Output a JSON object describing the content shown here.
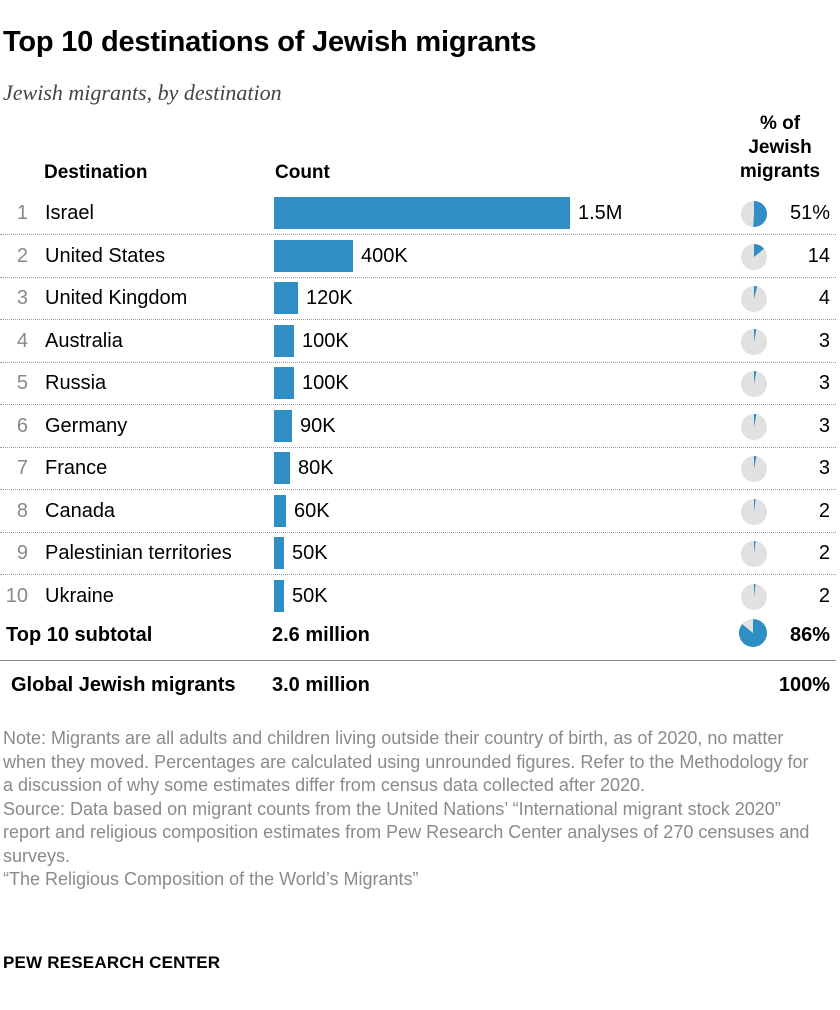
{
  "title": "Top 10 destinations of Jewish migrants",
  "subtitle": "Jewish migrants, by destination",
  "headers": {
    "destination": "Destination",
    "count": "Count",
    "pct_lines": [
      "% of",
      "Jewish",
      "migrants"
    ]
  },
  "chart_data": {
    "type": "bar",
    "categories": [
      "Israel",
      "United States",
      "United Kingdom",
      "Australia",
      "Russia",
      "Germany",
      "France",
      "Canada",
      "Palestinian territories",
      "Ukraine"
    ],
    "ranks": [
      "1",
      "2",
      "3",
      "4",
      "5",
      "6",
      "7",
      "8",
      "9",
      "10"
    ],
    "values": [
      1500000,
      400000,
      120000,
      100000,
      100000,
      90000,
      80000,
      60000,
      50000,
      50000
    ],
    "value_labels": [
      "1.5M",
      "400K",
      "120K",
      "100K",
      "100K",
      "90K",
      "80K",
      "60K",
      "50K",
      "50K"
    ],
    "percent_of_jewish_migrants": [
      51,
      14,
      4,
      3,
      3,
      3,
      3,
      2,
      2,
      2
    ],
    "percent_labels": [
      "51%",
      "14",
      "4",
      "3",
      "3",
      "3",
      "3",
      "2",
      "2",
      "2"
    ],
    "colors": {
      "bar": "#2f8ec4",
      "pie_bg": "#e1e1e1"
    }
  },
  "subtotal": {
    "label": "Top 10 subtotal",
    "count": "2.6 million",
    "percent": 86,
    "percent_label": "86%"
  },
  "global": {
    "label": "Global Jewish migrants",
    "count": "3.0 million",
    "percent_label": "100%"
  },
  "note": "Note: Migrants are all adults and children living outside their country of birth, as of 2020, no matter when they moved. Percentages are calculated using unrounded figures. Refer to the Methodology for a discussion of why some estimates differ from census data collected after 2020.",
  "source": "Source: Data based on migrant counts from the United Nations’ “International migrant stock 2020” report and religious composition estimates from Pew Research Center analyses of 270 censuses and surveys.",
  "report": "“The Religious Composition of the World’s Migrants”",
  "brand": "PEW RESEARCH CENTER"
}
